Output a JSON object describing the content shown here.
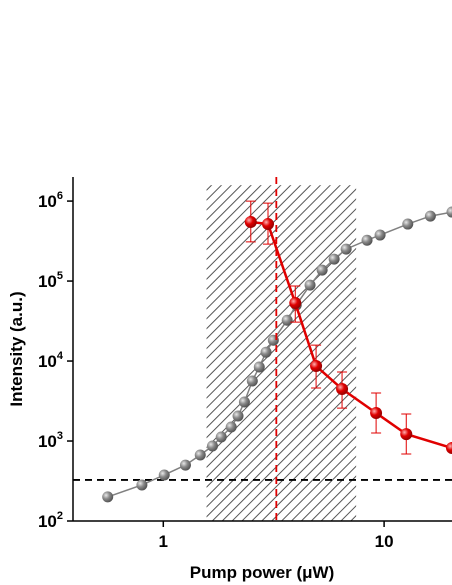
{
  "chart_data": {
    "type": "scatter",
    "x_label": "Pump power (μW)",
    "y_label": "Intensity (a.u.)",
    "x_scale": "log",
    "y_scale": "log",
    "xlim": [
      0.39,
      20.3
    ],
    "ylim": [
      100,
      2000000
    ],
    "xticks": [
      1,
      10
    ],
    "yticks": [
      {
        "value": 100,
        "label": "10",
        "sup": "2"
      },
      {
        "value": 1000,
        "label": "10",
        "sup": "3"
      },
      {
        "value": 10000,
        "label": "10",
        "sup": "4"
      },
      {
        "value": 100000,
        "label": "10",
        "sup": "5"
      },
      {
        "value": 1000000,
        "label": "10",
        "sup": "6"
      }
    ],
    "series": [
      {
        "color": "#808080",
        "x": [
          0.56,
          0.8,
          1.01,
          1.26,
          1.47,
          1.67,
          1.83,
          2.03,
          2.18,
          2.33,
          2.53,
          2.72,
          2.92,
          3.15,
          3.64,
          4.0,
          4.62,
          5.24,
          5.94,
          6.73,
          8.37,
          9.59,
          12.8,
          16.2,
          20.3
        ],
        "values": [
          200,
          282,
          376,
          500,
          668,
          866,
          1122,
          1496,
          2053,
          3074,
          5623,
          8414,
          12900,
          18200,
          32400,
          50100,
          89100,
          137000,
          188000,
          251000,
          324000,
          376000,
          516000,
          649000,
          729000
        ]
      },
      {
        "color": "#e00000",
        "x": [
          2.49,
          2.98,
          3.96,
          4.92,
          6.45,
          9.2,
          12.6,
          20.3
        ],
        "values": [
          547000,
          516000,
          53100,
          8660,
          4470,
          2240,
          1220,
          818
        ],
        "errors": [
          [
            238000,
            453000
          ],
          [
            226000,
            428000
          ],
          [
            22400,
            33500
          ],
          [
            4060,
            7140
          ],
          [
            1890,
            2820
          ],
          [
            980,
            1740
          ],
          [
            532,
            960
          ],
          null
        ]
      }
    ],
    "shaded_region": {
      "x": [
        1.57,
        7.47
      ],
      "y": [
        100,
        1580000
      ]
    },
    "vline": {
      "x": 3.25,
      "color": "#e00000"
    },
    "hline": {
      "y": 326,
      "color": "#000000"
    }
  }
}
